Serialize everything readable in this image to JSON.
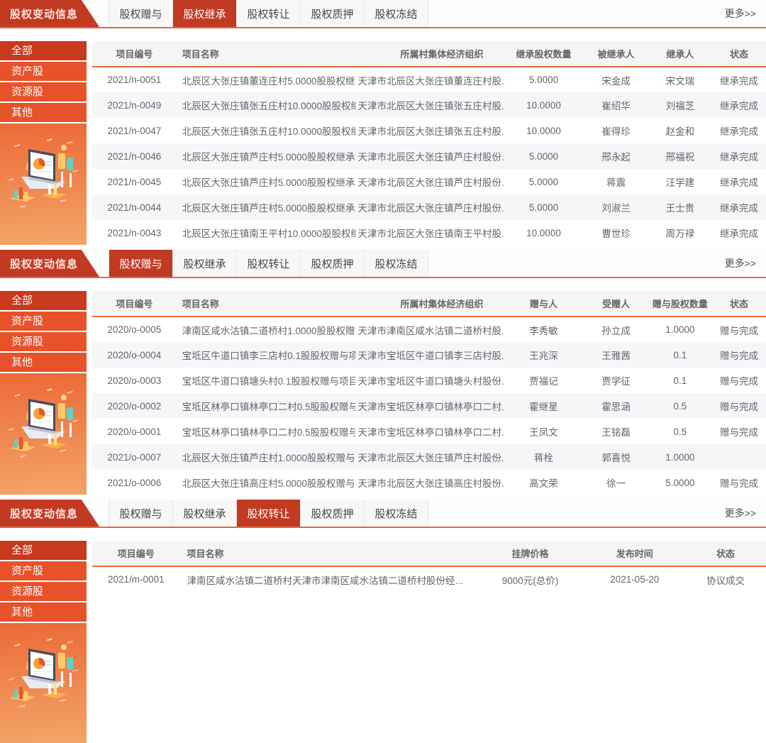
{
  "colors": {
    "brand_red": "#c23a22",
    "menu_selected": "#c8391e",
    "menu_item": "#e7522a",
    "grad_top": "#ec6a38",
    "grad_bottom": "#f3a469",
    "bar_underline": "#d96c48",
    "header_underline": "#e2703f"
  },
  "shared": {
    "flag_title": "股权变动信息",
    "more_label": "更多>>",
    "tabs": [
      "股权赠与",
      "股权继承",
      "股权转让",
      "股权质押",
      "股权冻结"
    ],
    "sidebar_items": [
      "全部",
      "资产股",
      "资源股",
      "其他"
    ],
    "illustration": "laptop-analytics-illustration"
  },
  "sections": [
    {
      "active_tab": 1,
      "columns": [
        "项目编号",
        "项目名称",
        "所属村集体经济组织",
        "继承股权数量",
        "被继承人",
        "继承人",
        "状态"
      ],
      "rows": [
        [
          "2021/n-0051",
          "北辰区大张庄镇董连庄村5.0000股股权继...",
          "天津市北辰区大张庄镇董连庄村股...",
          "5.0000",
          "宋金成",
          "宋文瑞",
          "继承完成"
        ],
        [
          "2021/n-0049",
          "北辰区大张庄镇张五庄村10.0000股股权继...",
          "天津市北辰区大张庄镇张五庄村股...",
          "10.0000",
          "崔绍华",
          "刘福芝",
          "继承完成"
        ],
        [
          "2021/n-0047",
          "北辰区大张庄镇张五庄村10.0000股股权继...",
          "天津市北辰区大张庄镇张五庄村股...",
          "10.0000",
          "崔得珍",
          "赵金和",
          "继承完成"
        ],
        [
          "2021/n-0046",
          "北辰区大张庄镇芦庄村5.0000股股权继承...",
          "天津市北辰区大张庄镇芦庄村股份...",
          "5.0000",
          "邢永起",
          "邢福祝",
          "继承完成"
        ],
        [
          "2021/n-0045",
          "北辰区大张庄镇芦庄村5.0000股股权继承...",
          "天津市北辰区大张庄镇芦庄村股份...",
          "5.0000",
          "蒋震",
          "汪学建",
          "继承完成"
        ],
        [
          "2021/n-0044",
          "北辰区大张庄镇芦庄村5.0000股股权继承...",
          "天津市北辰区大张庄镇芦庄村股份...",
          "5.0000",
          "刘淑兰",
          "王士贵",
          "继承完成"
        ],
        [
          "2021/n-0043",
          "北辰区大张庄镇南王平村10.0000股股权继...",
          "天津市北辰区大张庄镇南王平村股...",
          "10.0000",
          "曹世珍",
          "周万禄",
          "继承完成"
        ]
      ]
    },
    {
      "active_tab": 0,
      "columns": [
        "项目编号",
        "项目名称",
        "所属村集体经济组织",
        "赠与人",
        "受赠人",
        "赠与股权数量",
        "状态"
      ],
      "rows": [
        [
          "2020/o-0005",
          "津南区咸水沽镇二道桥村1.0000股股权赠...",
          "天津市津南区咸水沽镇二道桥村股...",
          "李秀敏",
          "孙立成",
          "1.0000",
          "赠与完成"
        ],
        [
          "2020/o-0004",
          "宝坻区牛道口镇李三店村0.1股股权赠与项目",
          "天津市宝坻区牛道口镇李三店村股...",
          "王兆深",
          "王雅茜",
          "0.1",
          "赠与完成"
        ],
        [
          "2020/o-0003",
          "宝坻区牛道口镇塘头村0.1股股权赠与项目",
          "天津市宝坻区牛道口镇塘头村股份...",
          "贾福记",
          "贾学征",
          "0.1",
          "赠与完成"
        ],
        [
          "2020/o-0002",
          "宝坻区林亭口镇林亭口二村0.5股股权赠与...",
          "天津市宝坻区林亭口镇林亭口二村...",
          "霍继星",
          "霍思涵",
          "0.5",
          "赠与完成"
        ],
        [
          "2020/o-0001",
          "宝坻区林亭口镇林亭口二村0.5股股权赠与...",
          "天津市宝坻区林亭口镇林亭口二村...",
          "王凤文",
          "王铭磊",
          "0.5",
          "赠与完成"
        ],
        [
          "2021/o-0007",
          "北辰区大张庄镇芦庄村1.0000股股权赠与...",
          "天津市北辰区大张庄镇芦庄村股份...",
          "蒋栓",
          "郭喜悦",
          "1.0000",
          ""
        ],
        [
          "2021/o-0006",
          "北辰区大张庄镇高庄村5.0000股股权赠与...",
          "天津市北辰区大张庄镇高庄村股份...",
          "高文荣",
          "徐一",
          "5.0000",
          "赠与完成"
        ]
      ]
    },
    {
      "active_tab": 2,
      "columns": [
        "项目编号",
        "项目名称",
        "挂牌价格",
        "发布时间",
        "状态"
      ],
      "rows": [
        [
          "2021/m-0001",
          "津南区咸水沽镇二道桥村天津市津南区咸水沽镇二道桥村股份经...",
          "9000元(总价)",
          "2021-05-20",
          "协议成交"
        ]
      ]
    }
  ]
}
